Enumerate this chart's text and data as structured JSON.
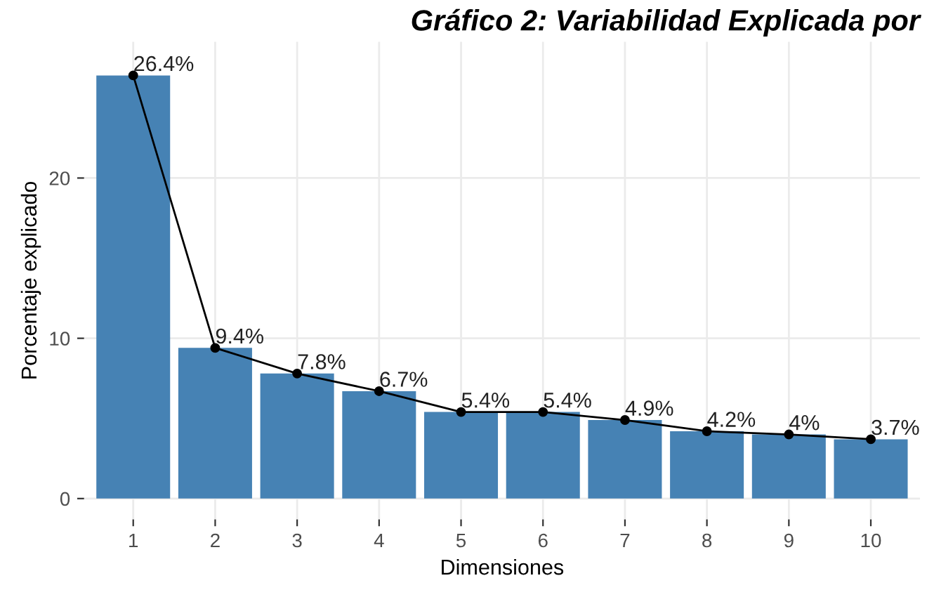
{
  "chart_data": {
    "type": "bar",
    "title": "Gráfico 2: Variabilidad Explicada por",
    "xlabel": "Dimensiones",
    "ylabel": "Porcentaje explicado",
    "categories": [
      "1",
      "2",
      "3",
      "4",
      "5",
      "6",
      "7",
      "8",
      "9",
      "10"
    ],
    "series": [
      {
        "color": "#4682b4",
        "values": [
          26.4,
          9.4,
          7.8,
          6.7,
          5.4,
          5.4,
          4.9,
          4.2,
          4.0,
          3.7
        ],
        "value_labels": [
          "26.4%",
          "9.4%",
          "7.8%",
          "6.7%",
          "5.4%",
          "5.4%",
          "4.9%",
          "4.2%",
          "4%",
          "3.7%"
        ]
      },
      {
        "type": "line",
        "color": "#000000",
        "marker": "circle",
        "values": [
          26.4,
          9.4,
          7.8,
          6.7,
          5.4,
          5.4,
          4.9,
          4.2,
          4.0,
          3.7
        ]
      }
    ],
    "ylim": [
      -1.3,
      28.5
    ],
    "yticks": [
      0,
      10,
      20
    ],
    "grid": true
  }
}
